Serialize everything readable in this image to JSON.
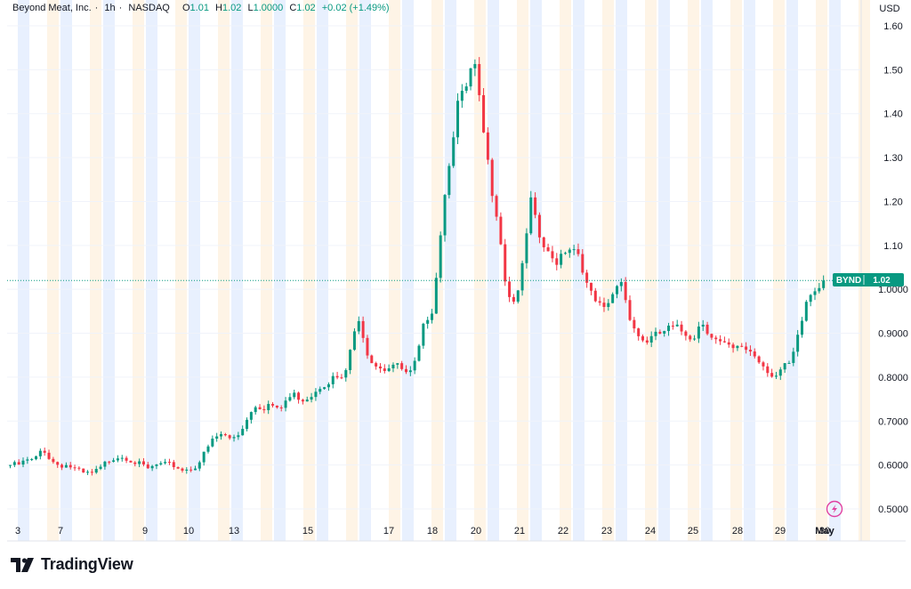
{
  "header": {
    "symbol": "Beyond Meat, Inc.",
    "interval": "1h",
    "exchange": "NASDAQ",
    "ohlc": {
      "o_label": "O",
      "o": "1.01",
      "h_label": "H",
      "h": "1.02",
      "l_label": "L",
      "l": "1.0000",
      "c_label": "C",
      "c": "1.02",
      "change": "+0.02 (+1.49%)"
    }
  },
  "currency": "USD",
  "price_tag": {
    "ticker": "BYND",
    "value": "1.02"
  },
  "brand": "TradingView",
  "colors": {
    "up": "#089981",
    "down": "#f23645",
    "session_pre": "#e8f0fe",
    "session_post": "#fef4e6",
    "grid": "#f0f3fa",
    "axis_text": "#131722"
  },
  "icons": {
    "brand": "tradingview-logo-icon",
    "marker": "lightning-icon"
  },
  "chart_data": {
    "type": "candlestick",
    "title": "Beyond Meat, Inc. · 1h · NASDAQ",
    "y_axis": {
      "ticks": [
        "0.5000",
        "0.6000",
        "0.7000",
        "0.8000",
        "0.9000",
        "1.0000",
        "1.10",
        "1.20",
        "1.30",
        "1.40",
        "1.50",
        "1.60"
      ],
      "tick_values": [
        0.5,
        0.6,
        0.7,
        0.8,
        0.9,
        1.0,
        1.1,
        1.2,
        1.3,
        1.4,
        1.5,
        1.6
      ],
      "range": [
        0.48,
        1.62
      ],
      "currency": "USD"
    },
    "x_axis": {
      "labels": [
        "3",
        "7",
        "9",
        "10",
        "13",
        "15",
        "17",
        "18",
        "20",
        "21",
        "22",
        "23",
        "24",
        "25",
        "28",
        "29",
        "30",
        "May"
      ]
    },
    "last_price": 1.02,
    "path": [
      {
        "d": "3",
        "v": [
          0.6,
          0.6,
          0.61,
          0.61
        ]
      },
      {
        "d": "7",
        "v": [
          0.64,
          0.61,
          0.6,
          0.6,
          0.59,
          0.58,
          0.58
        ]
      },
      {
        "d": "9",
        "v": [
          0.59,
          0.61,
          0.62,
          0.62,
          0.61
        ]
      },
      {
        "d": "10",
        "v": [
          0.6,
          0.59,
          0.6,
          0.6,
          0.6
        ]
      },
      {
        "d": "13",
        "v": [
          0.59,
          0.59,
          0.6,
          0.63,
          0.66,
          0.67,
          0.66,
          0.67
        ]
      },
      {
        "d": "15",
        "v": [
          0.7,
          0.74,
          0.73,
          0.74,
          0.72
        ]
      },
      {
        "d": "17",
        "v": [
          0.75,
          0.76,
          0.75,
          0.76,
          0.78,
          0.79,
          0.8,
          0.79
        ]
      },
      {
        "d": "18",
        "v": [
          0.88,
          0.93,
          0.85,
          0.83,
          0.82,
          0.83
        ]
      },
      {
        "d": "20",
        "v": [
          0.82,
          0.8,
          0.84,
          0.93,
          0.96
        ]
      },
      {
        "d": "21",
        "v": [
          1.15,
          1.3,
          1.42,
          1.45,
          1.52,
          1.38
        ]
      },
      {
        "d": "22",
        "v": [
          1.25,
          1.16,
          1.0,
          0.97,
          1.05,
          1.2
        ]
      },
      {
        "d": "23",
        "v": [
          1.12,
          1.08,
          1.06,
          1.09,
          1.1,
          1.08
        ]
      },
      {
        "d": "24",
        "v": [
          1.0,
          0.97,
          0.95,
          0.98,
          1.03,
          0.95
        ]
      },
      {
        "d": "25",
        "v": [
          0.9,
          0.88,
          0.89,
          0.9,
          0.91
        ]
      },
      {
        "d": "28",
        "v": [
          0.91,
          0.9,
          0.89,
          0.93,
          0.9
        ]
      },
      {
        "d": "29",
        "v": [
          0.88,
          0.87,
          0.86,
          0.87,
          0.86
        ]
      },
      {
        "d": "30",
        "v": [
          0.84,
          0.82,
          0.8,
          0.82,
          0.83,
          0.9,
          0.98,
          1.0,
          1.02
        ]
      }
    ]
  }
}
